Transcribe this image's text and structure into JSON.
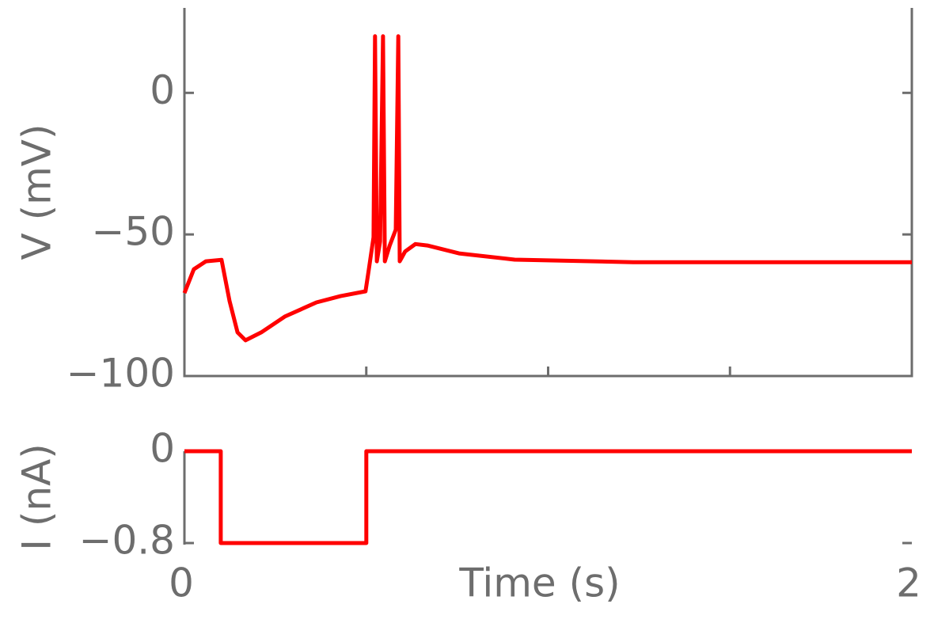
{
  "chart_data": [
    {
      "type": "line",
      "ylabel": "V (mV)",
      "color": "#ff0000",
      "x": [
        0,
        0.026,
        0.059,
        0.102,
        0.124,
        0.146,
        0.168,
        0.211,
        0.276,
        0.363,
        0.429,
        0.498,
        0.507,
        0.52,
        0.524,
        0.529,
        0.538,
        0.546,
        0.551,
        0.564,
        0.581,
        0.588,
        0.592,
        0.607,
        0.635,
        0.668,
        0.755,
        0.908,
        1.234,
        2
      ],
      "values": [
        -70.7,
        -62.3,
        -59.5,
        -59,
        -73.5,
        -84.6,
        -87.4,
        -84.6,
        -79,
        -74,
        -71.8,
        -70.1,
        -62.3,
        -51,
        20,
        -59.5,
        -52.5,
        20,
        -59.5,
        -54,
        -48.3,
        20,
        -59.5,
        -56,
        -53.4,
        -53.9,
        -56.7,
        -58.9,
        -59.8,
        -59.8
      ],
      "xlim": [
        0,
        2
      ],
      "xminorticks": [
        0.5,
        1,
        1.5,
        2
      ],
      "ylim": [
        -100,
        30
      ],
      "yticks": [
        {
          "value": -100,
          "label": "−100"
        },
        {
          "value": -50,
          "label": "−50"
        },
        0
      ]
    },
    {
      "type": "line",
      "ylabel": "I (nA)",
      "xlabel": "Time (s)",
      "color": "#ff0000",
      "x": [
        0,
        0.1,
        0.1,
        0.5,
        0.5,
        2
      ],
      "values": [
        0,
        0,
        -0.8,
        -0.8,
        0,
        0
      ],
      "xlim": [
        0,
        2
      ],
      "xticks": [
        0,
        2
      ],
      "ylim": [
        -0.8,
        0
      ],
      "yticks": [
        {
          "value": -0.8,
          "label": "−0.8"
        },
        0
      ]
    }
  ]
}
